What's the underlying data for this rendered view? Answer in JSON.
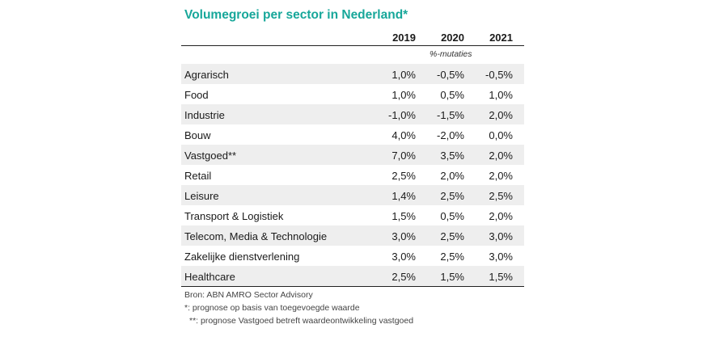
{
  "title": "Volumegroei per sector in Nederland*",
  "units_note": "%-mutaties",
  "footnotes": {
    "source": "Bron: ABN AMRO Sector Advisory",
    "note1": "*: prognose op basis van toegevoegde waarde",
    "note2": "**: prognose Vastgoed betreft waardeontwikkeling vastgoed"
  },
  "chart_data": {
    "type": "table",
    "title": "Volumegroei per sector in Nederland*",
    "columns": [
      "2019",
      "2020",
      "2021"
    ],
    "units": "%-mutaties",
    "rows": [
      {
        "sector": "Agrarisch",
        "values": [
          "1,0%",
          "-0,5%",
          "-0,5%"
        ]
      },
      {
        "sector": "Food",
        "values": [
          "1,0%",
          "0,5%",
          "1,0%"
        ]
      },
      {
        "sector": "Industrie",
        "values": [
          "-1,0%",
          "-1,5%",
          "2,0%"
        ]
      },
      {
        "sector": "Bouw",
        "values": [
          "4,0%",
          "-2,0%",
          "0,0%"
        ]
      },
      {
        "sector": "Vastgoed**",
        "values": [
          "7,0%",
          "3,5%",
          "2,0%"
        ]
      },
      {
        "sector": "Retail",
        "values": [
          "2,5%",
          "2,0%",
          "2,0%"
        ]
      },
      {
        "sector": "Leisure",
        "values": [
          "1,4%",
          "2,5%",
          "2,5%"
        ]
      },
      {
        "sector": "Transport & Logistiek",
        "values": [
          "1,5%",
          "0,5%",
          "2,0%"
        ]
      },
      {
        "sector": "Telecom, Media & Technologie",
        "values": [
          "3,0%",
          "2,5%",
          "3,0%"
        ]
      },
      {
        "sector": "Zakelijke dienstverlening",
        "values": [
          "3,0%",
          "2,5%",
          "3,0%"
        ]
      },
      {
        "sector": "Healthcare",
        "values": [
          "2,5%",
          "1,5%",
          "1,5%"
        ]
      }
    ]
  }
}
